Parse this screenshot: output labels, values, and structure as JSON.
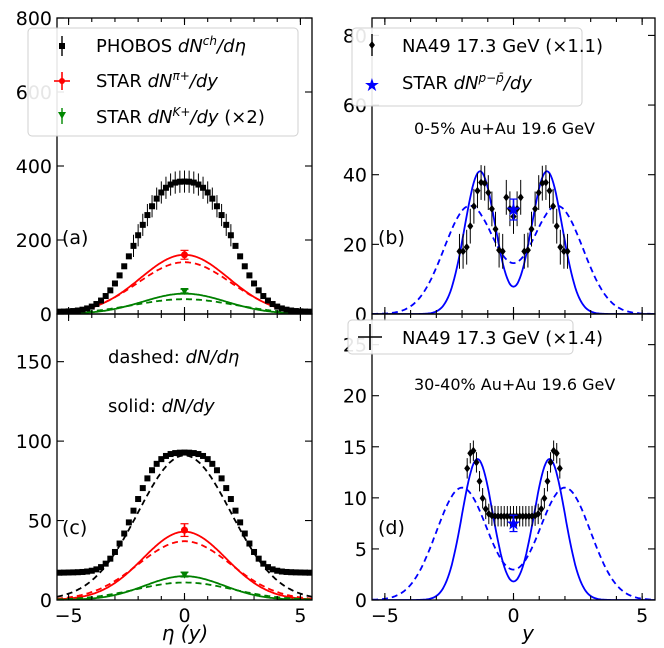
{
  "chart_data": [
    {
      "panel": "a",
      "type": "scatter",
      "panel_label": "(a)",
      "xlim": [
        -5.5,
        5.5
      ],
      "ylim": [
        0,
        800
      ],
      "yticks": [
        0,
        200,
        400,
        600,
        800
      ],
      "xticks": [
        -5,
        0,
        5
      ],
      "legend": [
        "PHOBOS dN^ch/dη",
        "STAR dN^π+/dy",
        "STAR dN^K+/dy (×2)"
      ],
      "legend_position": "top",
      "series": [
        {
          "name": "PHOBOS dN^ch/dη",
          "color": "#000000",
          "marker": "square",
          "model": "phobos_a"
        },
        {
          "name": "STAR dN^π+/dy",
          "color": "#ff0000",
          "marker": "point",
          "x": [
            0
          ],
          "y": [
            160
          ],
          "err": [
            12
          ]
        },
        {
          "name": "STAR dN^K+/dy (×2)",
          "color": "#008000",
          "marker": "triangle-down",
          "x": [
            0
          ],
          "y": [
            62
          ],
          "err": [
            5
          ]
        }
      ],
      "curves": [
        {
          "color": "#ff0000",
          "style": "solid",
          "amp": 160,
          "sigma": 1.9
        },
        {
          "color": "#ff0000",
          "style": "dashed",
          "amp": 140,
          "sigma": 2.0
        },
        {
          "color": "#008000",
          "style": "solid",
          "amp": 55,
          "sigma": 1.8
        },
        {
          "color": "#008000",
          "style": "dashed",
          "amp": 40,
          "sigma": 2.2
        }
      ]
    },
    {
      "panel": "b",
      "type": "scatter",
      "panel_label": "(b)",
      "annotation": "0-5% Au+Au 19.6 GeV",
      "xlim": [
        -5.5,
        5.5
      ],
      "ylim": [
        0,
        85
      ],
      "yticks": [
        0,
        20,
        40,
        60,
        80
      ],
      "xticks": [
        -5,
        0,
        5
      ],
      "legend": [
        "NA49 17.3 GeV (×1.1)",
        "STAR dN^(p−p̄)/dy"
      ],
      "legend_position": "top",
      "series": [
        {
          "name": "NA49 17.3 GeV (×1.1)",
          "color": "#000000",
          "marker": "diamond",
          "model": "na49_b"
        },
        {
          "name": "STAR dN^(p−p̄)/dy",
          "color": "#0000ff",
          "marker": "star",
          "x": [
            0
          ],
          "y": [
            30
          ],
          "err": [
            3
          ]
        }
      ],
      "curves": [
        {
          "color": "#0000ff",
          "style": "solid",
          "kind": "double",
          "amp": 41,
          "mu": 1.3,
          "sigma": 0.6
        },
        {
          "color": "#0000ff",
          "style": "dashed",
          "kind": "double",
          "amp": 31,
          "mu": 1.7,
          "sigma": 1.0
        }
      ]
    },
    {
      "panel": "c",
      "type": "scatter",
      "panel_label": "(c)",
      "annotations": [
        "dashed: dN/dη",
        "solid: dN/dy"
      ],
      "xlim": [
        -5.5,
        5.5
      ],
      "ylim": [
        0,
        180
      ],
      "yticks": [
        0,
        50,
        100,
        150
      ],
      "xticks": [
        -5,
        0,
        5
      ],
      "xlabel": "η (y)",
      "series": [
        {
          "name": "PHOBOS",
          "color": "#000000",
          "marker": "square",
          "model": "phobos_c"
        },
        {
          "name": "STAR π+",
          "color": "#ff0000",
          "marker": "point",
          "x": [
            0
          ],
          "y": [
            44
          ],
          "err": [
            4
          ]
        },
        {
          "name": "STAR K+",
          "color": "#008000",
          "marker": "triangle-down",
          "x": [
            0
          ],
          "y": [
            16
          ],
          "err": [
            1.5
          ]
        }
      ],
      "curves": [
        {
          "color": "#000000",
          "style": "dashed",
          "amp": 91,
          "sigma": 2.0
        },
        {
          "color": "#ff0000",
          "style": "solid",
          "amp": 43,
          "sigma": 1.8
        },
        {
          "color": "#ff0000",
          "style": "dashed",
          "amp": 37,
          "sigma": 2.0
        },
        {
          "color": "#008000",
          "style": "solid",
          "amp": 15,
          "sigma": 1.7
        },
        {
          "color": "#008000",
          "style": "dashed",
          "amp": 11,
          "sigma": 2.1
        }
      ]
    },
    {
      "panel": "d",
      "type": "scatter",
      "panel_label": "(d)",
      "annotation": "30-40% Au+Au 19.6 GeV",
      "xlim": [
        -5.5,
        5.5
      ],
      "ylim": [
        0,
        28
      ],
      "yticks": [
        0,
        5,
        10,
        15,
        20,
        25
      ],
      "xticks": [
        -5,
        0,
        5
      ],
      "xlabel": "y",
      "legend": [
        "NA49 17.3 GeV (×1.4)"
      ],
      "legend_position": "top",
      "series": [
        {
          "name": "NA49 17.3 GeV (×1.4)",
          "color": "#000000",
          "marker": "diamond",
          "model": "na49_d"
        },
        {
          "name": "STAR",
          "color": "#0000ff",
          "marker": "star",
          "x": [
            0
          ],
          "y": [
            7.5
          ],
          "err": [
            0.8
          ]
        }
      ],
      "curves": [
        {
          "color": "#0000ff",
          "style": "solid",
          "kind": "double",
          "amp": 13.8,
          "mu": 1.4,
          "sigma": 0.6
        },
        {
          "color": "#0000ff",
          "style": "dashed",
          "kind": "double",
          "amp": 11,
          "mu": 2.0,
          "sigma": 1.0
        }
      ]
    }
  ],
  "labels": {
    "a": {
      "legend1": "PHOBOS",
      "legend2": "STAR",
      "legend3": "STAR",
      "legend3_tail": "(×2)"
    },
    "b": {
      "legend1": "NA49 17.3 GeV (×1.1)",
      "legend2": "STAR"
    },
    "c": {
      "annot1_prefix": "dashed: ",
      "annot2_prefix": "solid: "
    },
    "d": {
      "legend1": "NA49 17.3 GeV (×1.4)"
    },
    "xlabel_left": "η (y)",
    "xlabel_right": "y"
  }
}
